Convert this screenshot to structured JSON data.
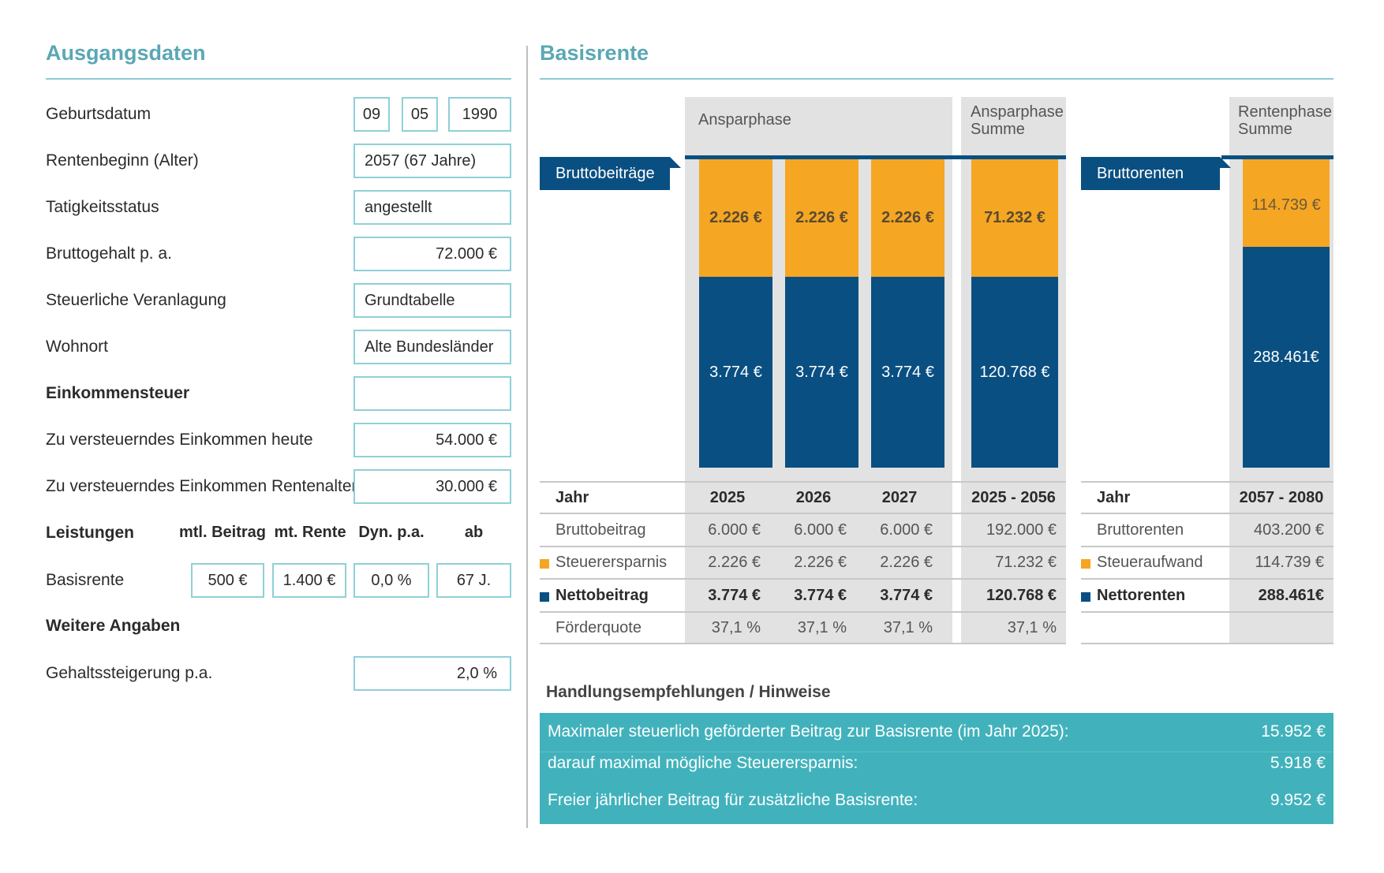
{
  "left": {
    "title": "Ausgangsdaten",
    "rows": [
      {
        "label": "Geburtsdatum",
        "day": "09",
        "month": "05",
        "year": "1990"
      },
      {
        "label": "Rentenbeginn (Alter)",
        "value": "2057 (67 Jahre)"
      },
      {
        "label": "Tatigkeitsstatus",
        "value": "angestellt"
      },
      {
        "label": "Bruttogehalt p. a.",
        "value": "72.000 €"
      },
      {
        "label": "Steuerliche Veranlagung",
        "value": "Grundtabelle"
      },
      {
        "label": "Wohnort",
        "value": "Alte Bundesländer"
      },
      {
        "label": "Einkommensteuer",
        "value": ""
      },
      {
        "label": "Zu versteuerndes Einkommen heute",
        "value": "54.000 €"
      },
      {
        "label": "Zu versteuerndes Einkommen Rentenalter",
        "value": "30.000 €"
      }
    ],
    "leistungen": {
      "label": "Leistungen",
      "headers": [
        "mtl. Beitrag",
        "mt. Rente",
        "Dyn. p.a.",
        "ab"
      ],
      "row_label": "Basisrente",
      "values": [
        "500 €",
        "1.400 €",
        "0,0 %",
        "67 J."
      ]
    },
    "weitere": {
      "label": "Weitere Angaben",
      "row_label": "Gehaltssteigerung p.a.",
      "value": "2,0 %"
    }
  },
  "right": {
    "title": "Basisrente",
    "headers": {
      "ansparphase": "Ansparphase",
      "ansparphase_summe": "Ansparphase Summe",
      "rentenphase_summe": "Rentenphase Summe"
    },
    "tabs": {
      "brutto": "Bruttobeiträge",
      "rente": "Bruttorenten"
    },
    "colors": {
      "orange": "#f5a623",
      "navy": "#0a4f82",
      "teal": "#41b2bc",
      "title": "#5aa8b4"
    },
    "bars": [
      {
        "top_label": "2.226 €",
        "bottom_label": "3.774 €",
        "top_value": 2226,
        "bottom_value": 3774
      },
      {
        "top_label": "2.226 €",
        "bottom_label": "3.774 €",
        "top_value": 2226,
        "bottom_value": 3774
      },
      {
        "top_label": "2.226 €",
        "bottom_label": "3.774 €",
        "top_value": 2226,
        "bottom_value": 3774
      },
      {
        "top_label": "71.232 €",
        "bottom_label": "120.768 €",
        "top_value": 71232,
        "bottom_value": 120768
      },
      {
        "top_label": "114.739 €",
        "bottom_label": "288.461€",
        "top_value": 114739,
        "bottom_value": 288461
      }
    ],
    "table": {
      "jahr_label": "Jahr",
      "years": [
        "2025",
        "2026",
        "2027",
        "2025 - 2056"
      ],
      "rente_years": "2057 - 2080",
      "rows": [
        {
          "label": "Bruttobeitrag",
          "values": [
            "6.000 €",
            "6.000 €",
            "6.000 €",
            "192.000 €"
          ],
          "r_label": "Bruttorenten",
          "r_value": "403.200 €"
        },
        {
          "label": "Steuerersparnis",
          "values": [
            "2.226 €",
            "2.226 €",
            "2.226 €",
            "71.232 €"
          ],
          "r_label": "Steueraufwand",
          "r_value": "114.739 €"
        },
        {
          "label": "Nettobeitrag",
          "values": [
            "3.774 €",
            "3.774 €",
            "3.774 €",
            "120.768 €"
          ],
          "r_label": "Nettorenten",
          "r_value": "288.461€"
        },
        {
          "label": "Förderquote",
          "values": [
            "37,1 %",
            "37,1 %",
            "37,1 %",
            "37,1 %"
          ],
          "r_label": "",
          "r_value": ""
        }
      ]
    },
    "hints": {
      "title": "Handlungsempfehlungen / Hinweise",
      "rows": [
        {
          "text": "Maximaler steuerlich geförderter Beitrag zur Basisrente (im Jahr 2025):",
          "value": "15.952 €"
        },
        {
          "text": "darauf maximal mögliche Steuerersparnis:",
          "value": "5.918 €"
        },
        {
          "text": "Freier jährlicher Beitrag für zusätzliche Basisrente:",
          "value": "9.952 €"
        }
      ]
    }
  }
}
